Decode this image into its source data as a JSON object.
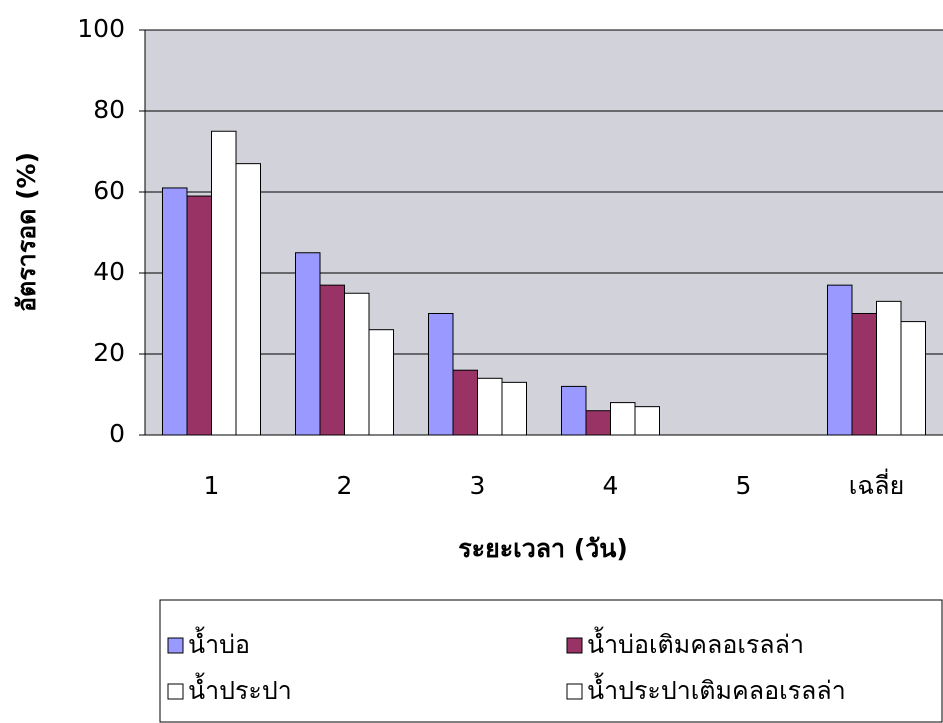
{
  "chart_data": {
    "type": "bar",
    "x_label": "ระยะเวลา (วัน)",
    "y_label": "อัตรารอด (%)",
    "categories": [
      "1",
      "2",
      "3",
      "4",
      "5",
      "เฉลี่ย"
    ],
    "series": [
      {
        "name": "น้ำบ่อ",
        "color": "#9999ff",
        "values": [
          61,
          45,
          30,
          12,
          0,
          37
        ]
      },
      {
        "name": "น้ำบ่อเติมคลอเรลล่า",
        "color": "#993366",
        "values": [
          59,
          37,
          16,
          6,
          0,
          30
        ]
      },
      {
        "name": "น้ำประปา",
        "color": "#ffffff",
        "values": [
          75,
          35,
          14,
          8,
          0,
          33
        ]
      },
      {
        "name": "น้ำประปาเติมคลอเรลล่า",
        "color": "#ffffff",
        "values": [
          67,
          26,
          13,
          7,
          0,
          28
        ]
      }
    ],
    "ylim": [
      0,
      100
    ],
    "yticks": [
      0,
      20,
      40,
      60,
      80,
      100
    ],
    "grid": true
  }
}
